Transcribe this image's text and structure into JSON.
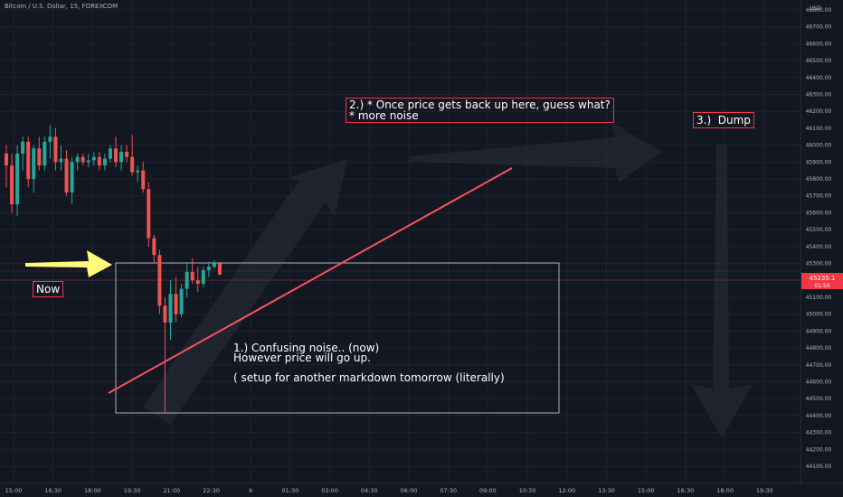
{
  "header": {
    "symbol_title": "Bitcoin / U.S. Dollar, 15, FOREXCOM"
  },
  "price_axis": {
    "currency": "USD",
    "ticks": [
      "46800.00",
      "46700.00",
      "46600.00",
      "46500.00",
      "46400.00",
      "46300.00",
      "46200.00",
      "46100.00",
      "46000.00",
      "45900.00",
      "45800.00",
      "45700.00",
      "45600.00",
      "45500.00",
      "45400.00",
      "45300.00",
      "45200.00",
      "45100.00",
      "45000.00",
      "44900.00",
      "44800.00",
      "44700.00",
      "44600.00",
      "44500.00",
      "44400.00",
      "44300.00",
      "44200.00",
      "44100.00"
    ],
    "last_price_label": "45235.1",
    "countdown_label": "01:56",
    "last_price": 45235.1
  },
  "time_axis": {
    "ticks": [
      "15:00",
      "16:30",
      "18:00",
      "19:30",
      "21:00",
      "22:30",
      "6",
      "01:30",
      "03:00",
      "04:30",
      "06:00",
      "07:30",
      "09:00",
      "10:30",
      "12:00",
      "13:30",
      "15:00",
      "16:30",
      "18:00",
      "19:30"
    ]
  },
  "annotations": {
    "now_label": "Now",
    "note1": "1.) Confusing noise.. (now)\nHowever price will go up.\n\n( setup for another markdown tomorrow (literally)",
    "note2": "2.) * Once price gets back up here, guess what?\n* more noise",
    "note3": "3.)  Dump"
  },
  "colors": {
    "background": "#131722",
    "up_candle": "#26a69a",
    "down_candle": "#ef5350",
    "trendline": "#f7525f",
    "arrow_now": "#fffb7a",
    "label_border": "#f23645"
  },
  "chart_data": {
    "type": "candlestick",
    "symbol": "Bitcoin / U.S. Dollar",
    "interval": "15",
    "source": "FOREXCOM",
    "ylim": [
      44050,
      46850
    ],
    "candles": [
      {
        "o": 45950,
        "h": 46000,
        "l": 45750,
        "c": 45880
      },
      {
        "o": 45880,
        "h": 45950,
        "l": 45600,
        "c": 45650
      },
      {
        "o": 45650,
        "h": 46000,
        "l": 45580,
        "c": 45950
      },
      {
        "o": 45950,
        "h": 46050,
        "l": 45850,
        "c": 46020
      },
      {
        "o": 46020,
        "h": 46050,
        "l": 45750,
        "c": 45800
      },
      {
        "o": 45800,
        "h": 46000,
        "l": 45720,
        "c": 45980
      },
      {
        "o": 45980,
        "h": 46050,
        "l": 45850,
        "c": 45880
      },
      {
        "o": 45880,
        "h": 46050,
        "l": 45850,
        "c": 46020
      },
      {
        "o": 46020,
        "h": 46120,
        "l": 45920,
        "c": 46050
      },
      {
        "o": 46050,
        "h": 46100,
        "l": 45850,
        "c": 45900
      },
      {
        "o": 45900,
        "h": 46000,
        "l": 45850,
        "c": 45920
      },
      {
        "o": 45920,
        "h": 45970,
        "l": 45700,
        "c": 45720
      },
      {
        "o": 45720,
        "h": 45930,
        "l": 45650,
        "c": 45900
      },
      {
        "o": 45900,
        "h": 45950,
        "l": 45850,
        "c": 45930
      },
      {
        "o": 45930,
        "h": 45950,
        "l": 45880,
        "c": 45900
      },
      {
        "o": 45900,
        "h": 45950,
        "l": 45870,
        "c": 45910
      },
      {
        "o": 45910,
        "h": 45960,
        "l": 45880,
        "c": 45930
      },
      {
        "o": 45930,
        "h": 45960,
        "l": 45850,
        "c": 45880
      },
      {
        "o": 45880,
        "h": 45950,
        "l": 45850,
        "c": 45920
      },
      {
        "o": 45920,
        "h": 46000,
        "l": 45900,
        "c": 45980
      },
      {
        "o": 45980,
        "h": 46050,
        "l": 45870,
        "c": 45900
      },
      {
        "o": 45900,
        "h": 46000,
        "l": 45850,
        "c": 45960
      },
      {
        "o": 45960,
        "h": 46000,
        "l": 45900,
        "c": 45930
      },
      {
        "o": 45930,
        "h": 46060,
        "l": 45820,
        "c": 45840
      },
      {
        "o": 45840,
        "h": 45880,
        "l": 45780,
        "c": 45850
      },
      {
        "o": 45850,
        "h": 45900,
        "l": 45720,
        "c": 45740
      },
      {
        "o": 45740,
        "h": 45780,
        "l": 45400,
        "c": 45450
      },
      {
        "o": 45450,
        "h": 45470,
        "l": 45300,
        "c": 45350
      },
      {
        "o": 45350,
        "h": 45380,
        "l": 45000,
        "c": 45050
      },
      {
        "o": 45050,
        "h": 45100,
        "l": 44420,
        "c": 44950
      },
      {
        "o": 44950,
        "h": 45200,
        "l": 44850,
        "c": 45120
      },
      {
        "o": 45120,
        "h": 45220,
        "l": 44950,
        "c": 45000
      },
      {
        "o": 45000,
        "h": 45180,
        "l": 44980,
        "c": 45150
      },
      {
        "o": 45150,
        "h": 45300,
        "l": 45100,
        "c": 45250
      },
      {
        "o": 45250,
        "h": 45330,
        "l": 45180,
        "c": 45200
      },
      {
        "o": 45200,
        "h": 45280,
        "l": 45130,
        "c": 45180
      },
      {
        "o": 45180,
        "h": 45280,
        "l": 45160,
        "c": 45260
      },
      {
        "o": 45260,
        "h": 45310,
        "l": 45220,
        "c": 45280
      },
      {
        "o": 45280,
        "h": 45320,
        "l": 45270,
        "c": 45300
      },
      {
        "o": 45300,
        "h": 45310,
        "l": 45230,
        "c": 45235
      }
    ]
  }
}
